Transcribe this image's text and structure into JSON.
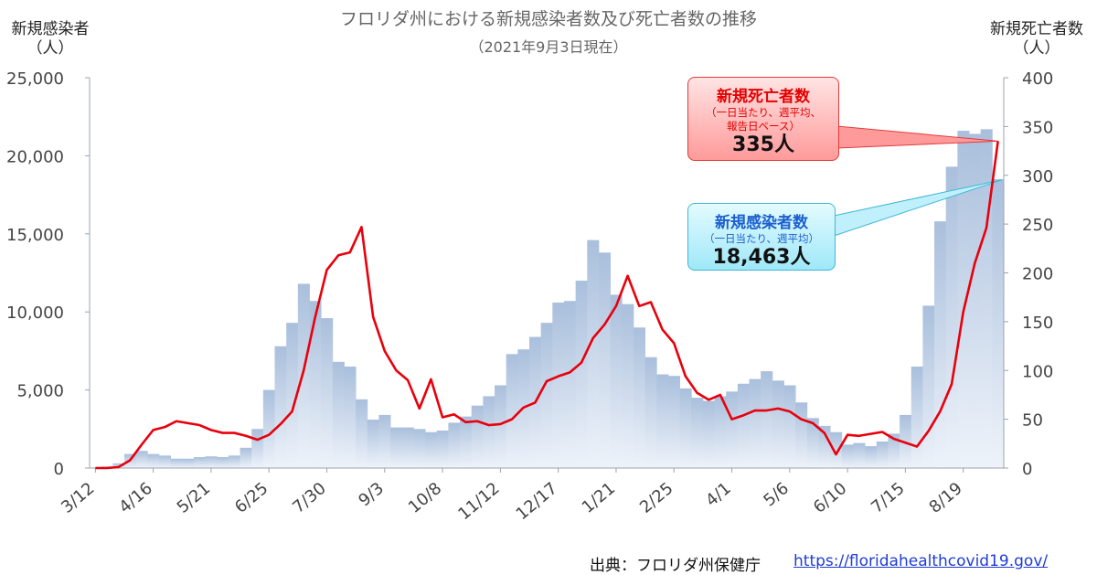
{
  "title": "フロリダ州における新規感染者数及び死亡者数の推移",
  "subtitle": "（2021年9月3日現在）",
  "source": {
    "label": "出典：フロリダ州保健庁",
    "url_text": "https://floridahealthcovid19.gov/"
  },
  "colors": {
    "bars_top": "#a9bfdc",
    "bars_bottom": "#eef3fa",
    "deaths_line": "#e8000b",
    "axis_text": "#555555"
  },
  "chart_data": {
    "type": "bar+line",
    "title": "フロリダ州における新規感染者数及び死亡者数の推移",
    "subtitle": "（2021年9月3日現在）",
    "grid": false,
    "y_left": {
      "label_line1": "新規感染者",
      "label_line2": "（人）",
      "lim": [
        0,
        25000
      ],
      "ticks": [
        "0",
        "5,000",
        "10,000",
        "15,000",
        "20,000",
        "25,000"
      ],
      "tick_values": [
        0,
        5000,
        10000,
        15000,
        20000,
        25000
      ]
    },
    "y_right": {
      "label_line1": "新規死亡者数",
      "label_line2": "（人）",
      "lim": [
        0,
        400
      ],
      "ticks": [
        "0",
        "50",
        "100",
        "150",
        "200",
        "250",
        "300",
        "350",
        "400"
      ],
      "tick_values": [
        0,
        50,
        100,
        150,
        200,
        250,
        300,
        350,
        400
      ]
    },
    "x_tick_labels": [
      "3/12",
      "4/16",
      "5/21",
      "6/25",
      "7/30",
      "9/3",
      "10/8",
      "11/12",
      "12/17",
      "1/21",
      "2/25",
      "4/1",
      "5/6",
      "6/10",
      "7/15",
      "8/19"
    ],
    "x_tick_week_index": [
      0,
      5,
      10,
      15,
      20,
      25,
      30,
      35,
      40,
      45,
      50,
      55,
      60,
      65,
      70,
      75
    ],
    "series": [
      {
        "name": "新規感染者数",
        "kind": "bar",
        "axis": "left",
        "values": [
          0,
          100,
          300,
          900,
          1100,
          900,
          800,
          600,
          600,
          700,
          750,
          700,
          800,
          1300,
          2500,
          5000,
          7800,
          9300,
          11800,
          10700,
          9600,
          6800,
          6500,
          4400,
          3100,
          3400,
          2600,
          2600,
          2500,
          2300,
          2400,
          2900,
          3300,
          4000,
          4600,
          5300,
          7300,
          7600,
          8400,
          9300,
          10600,
          10700,
          12000,
          14600,
          13800,
          11100,
          10500,
          9000,
          7100,
          6000,
          5900,
          5100,
          4500,
          4300,
          4600,
          4900,
          5400,
          5700,
          6200,
          5600,
          5300,
          4200,
          3200,
          2700,
          2300,
          1500,
          1600,
          1400,
          1700,
          2200,
          3400,
          6500,
          10400,
          15800,
          19300,
          21600,
          21400,
          21700,
          18500
        ]
      },
      {
        "name": "新規死亡者数",
        "kind": "line",
        "axis": "right",
        "values": [
          0,
          0,
          1,
          8,
          24,
          39,
          42,
          48,
          46,
          44,
          39,
          36,
          36,
          33,
          29,
          34,
          45,
          58,
          100,
          155,
          203,
          218,
          221,
          247,
          155,
          120,
          100,
          90,
          61,
          91,
          52,
          55,
          47,
          48,
          44,
          45,
          50,
          62,
          67,
          89,
          94,
          98,
          108,
          133,
          147,
          166,
          197,
          166,
          170,
          142,
          128,
          94,
          77,
          70,
          75,
          50,
          54,
          59,
          59,
          61,
          58,
          50,
          46,
          36,
          14,
          34,
          33,
          35,
          37,
          30,
          26,
          22,
          38,
          58,
          86,
          160,
          210,
          246,
          335
        ]
      }
    ],
    "annotations": [
      {
        "series": "新規死亡者数",
        "title": "新規死亡者数",
        "note_line1": "（一日当たり、週平均、",
        "note_line2": "報告日ベース）",
        "value": "335人"
      },
      {
        "series": "新規感染者数",
        "title": "新規感染者数",
        "note_line1": "（一日当たり、週平均）",
        "value": "18,463人"
      }
    ]
  }
}
